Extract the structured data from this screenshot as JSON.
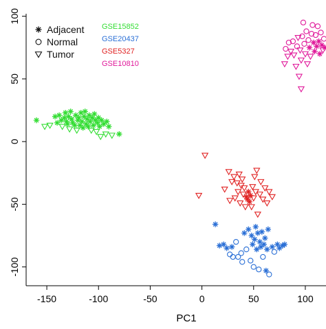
{
  "chart_data": {
    "type": "scatter",
    "title": "",
    "xlabel": "PC1",
    "ylabel": "",
    "xlim": [
      -170,
      120
    ],
    "ylim": [
      -115,
      102
    ],
    "x_ticks": [
      -150,
      -100,
      -50,
      0,
      50,
      100
    ],
    "y_ticks": [
      -100,
      -50,
      0,
      50,
      100
    ],
    "x_tick_labels": [
      "-150",
      "-100",
      "-50",
      "0",
      "50",
      "100"
    ],
    "y_tick_labels": [
      "-100",
      "-50",
      "0",
      "50",
      "100"
    ],
    "grid": false,
    "legend_placement": "top-left",
    "shape_legend": [
      {
        "label": "Adjacent",
        "marker": "asterisk"
      },
      {
        "label": "Normal",
        "marker": "circle"
      },
      {
        "label": "Tumor",
        "marker": "triangle-down"
      }
    ],
    "dataset_legend": [
      {
        "label": "GSE15852",
        "color": "#33dd33"
      },
      {
        "label": "GSE20437",
        "color": "#2a6fd6"
      },
      {
        "label": "GSE5327",
        "color": "#e02222"
      },
      {
        "label": "GSE10810",
        "color": "#e0189a"
      }
    ],
    "series": [
      {
        "name": "GSE15852",
        "color": "#33dd33",
        "points": [
          {
            "x": -160,
            "y": 17,
            "m": "asterisk"
          },
          {
            "x": -152,
            "y": 12,
            "m": "triangle-down"
          },
          {
            "x": -147,
            "y": 13,
            "m": "triangle-down"
          },
          {
            "x": -142,
            "y": 20,
            "m": "asterisk"
          },
          {
            "x": -140,
            "y": 15,
            "m": "asterisk"
          },
          {
            "x": -138,
            "y": 21,
            "m": "asterisk"
          },
          {
            "x": -136,
            "y": 17,
            "m": "asterisk"
          },
          {
            "x": -135,
            "y": 12,
            "m": "triangle-down"
          },
          {
            "x": -133,
            "y": 19,
            "m": "asterisk"
          },
          {
            "x": -132,
            "y": 23,
            "m": "asterisk"
          },
          {
            "x": -131,
            "y": 16,
            "m": "asterisk"
          },
          {
            "x": -130,
            "y": 14,
            "m": "asterisk"
          },
          {
            "x": -129,
            "y": 20,
            "m": "asterisk"
          },
          {
            "x": -128,
            "y": 10,
            "m": "triangle-down"
          },
          {
            "x": -127,
            "y": 24,
            "m": "asterisk"
          },
          {
            "x": -126,
            "y": 18,
            "m": "asterisk"
          },
          {
            "x": -125,
            "y": 15,
            "m": "asterisk"
          },
          {
            "x": -123,
            "y": 13,
            "m": "asterisk"
          },
          {
            "x": -122,
            "y": 21,
            "m": "asterisk"
          },
          {
            "x": -121,
            "y": 9,
            "m": "triangle-down"
          },
          {
            "x": -120,
            "y": 17,
            "m": "asterisk"
          },
          {
            "x": -119,
            "y": 19,
            "m": "asterisk"
          },
          {
            "x": -118,
            "y": 13,
            "m": "asterisk"
          },
          {
            "x": -117,
            "y": 23,
            "m": "asterisk"
          },
          {
            "x": -116,
            "y": 16,
            "m": "asterisk"
          },
          {
            "x": -115,
            "y": 11,
            "m": "asterisk"
          },
          {
            "x": -114,
            "y": 20,
            "m": "asterisk"
          },
          {
            "x": -113,
            "y": 24,
            "m": "asterisk"
          },
          {
            "x": -112,
            "y": 14,
            "m": "asterisk"
          },
          {
            "x": -111,
            "y": 18,
            "m": "asterisk"
          },
          {
            "x": -110,
            "y": 12,
            "m": "asterisk"
          },
          {
            "x": -109,
            "y": 21,
            "m": "asterisk"
          },
          {
            "x": -108,
            "y": 16,
            "m": "asterisk"
          },
          {
            "x": -107,
            "y": 9,
            "m": "triangle-down"
          },
          {
            "x": -106,
            "y": 19,
            "m": "asterisk"
          },
          {
            "x": -105,
            "y": 13,
            "m": "asterisk"
          },
          {
            "x": -104,
            "y": 22,
            "m": "asterisk"
          },
          {
            "x": -103,
            "y": 17,
            "m": "asterisk"
          },
          {
            "x": -102,
            "y": 8,
            "m": "triangle-down"
          },
          {
            "x": -101,
            "y": 15,
            "m": "asterisk"
          },
          {
            "x": -100,
            "y": 19,
            "m": "asterisk"
          },
          {
            "x": -99,
            "y": 12,
            "m": "asterisk"
          },
          {
            "x": -98,
            "y": 4,
            "m": "triangle-down"
          },
          {
            "x": -97,
            "y": 17,
            "m": "asterisk"
          },
          {
            "x": -95,
            "y": 14,
            "m": "asterisk"
          },
          {
            "x": -93,
            "y": 6,
            "m": "triangle-down"
          },
          {
            "x": -92,
            "y": 16,
            "m": "asterisk"
          },
          {
            "x": -90,
            "y": 12,
            "m": "asterisk"
          },
          {
            "x": -87,
            "y": 5,
            "m": "triangle-down"
          },
          {
            "x": -80,
            "y": 6,
            "m": "asterisk"
          }
        ]
      },
      {
        "name": "GSE20437",
        "color": "#2a6fd6",
        "points": [
          {
            "x": 13,
            "y": -66,
            "m": "asterisk"
          },
          {
            "x": 17,
            "y": -83,
            "m": "asterisk"
          },
          {
            "x": 21,
            "y": -82,
            "m": "asterisk"
          },
          {
            "x": 24,
            "y": -85,
            "m": "asterisk"
          },
          {
            "x": 27,
            "y": -90,
            "m": "circle"
          },
          {
            "x": 29,
            "y": -84,
            "m": "asterisk"
          },
          {
            "x": 30,
            "y": -92,
            "m": "circle"
          },
          {
            "x": 33,
            "y": -80,
            "m": "circle"
          },
          {
            "x": 35,
            "y": -92,
            "m": "circle"
          },
          {
            "x": 38,
            "y": -89,
            "m": "circle"
          },
          {
            "x": 39,
            "y": -96,
            "m": "circle"
          },
          {
            "x": 41,
            "y": -73,
            "m": "asterisk"
          },
          {
            "x": 43,
            "y": -86,
            "m": "circle"
          },
          {
            "x": 45,
            "y": -70,
            "m": "asterisk"
          },
          {
            "x": 47,
            "y": -95,
            "m": "circle"
          },
          {
            "x": 48,
            "y": -75,
            "m": "asterisk"
          },
          {
            "x": 49,
            "y": -82,
            "m": "asterisk"
          },
          {
            "x": 50,
            "y": -100,
            "m": "circle"
          },
          {
            "x": 51,
            "y": -78,
            "m": "asterisk"
          },
          {
            "x": 52,
            "y": -68,
            "m": "asterisk"
          },
          {
            "x": 53,
            "y": -86,
            "m": "asterisk"
          },
          {
            "x": 54,
            "y": -73,
            "m": "asterisk"
          },
          {
            "x": 55,
            "y": -102,
            "m": "circle"
          },
          {
            "x": 56,
            "y": -80,
            "m": "asterisk"
          },
          {
            "x": 57,
            "y": -84,
            "m": "asterisk"
          },
          {
            "x": 58,
            "y": -72,
            "m": "asterisk"
          },
          {
            "x": 59,
            "y": -92,
            "m": "circle"
          },
          {
            "x": 60,
            "y": -82,
            "m": "asterisk"
          },
          {
            "x": 61,
            "y": -77,
            "m": "asterisk"
          },
          {
            "x": 62,
            "y": -103,
            "m": "asterisk"
          },
          {
            "x": 63,
            "y": -86,
            "m": "asterisk"
          },
          {
            "x": 64,
            "y": -70,
            "m": "asterisk"
          },
          {
            "x": 65,
            "y": -106,
            "m": "circle"
          },
          {
            "x": 68,
            "y": -84,
            "m": "asterisk"
          },
          {
            "x": 70,
            "y": -88,
            "m": "circle"
          },
          {
            "x": 73,
            "y": -82,
            "m": "asterisk"
          },
          {
            "x": 75,
            "y": -85,
            "m": "asterisk"
          },
          {
            "x": 78,
            "y": -83,
            "m": "asterisk"
          },
          {
            "x": 80,
            "y": -82,
            "m": "asterisk"
          }
        ]
      },
      {
        "name": "GSE5327",
        "color": "#e02222",
        "points": [
          {
            "x": -3,
            "y": -43,
            "m": "triangle-down"
          },
          {
            "x": 3,
            "y": -11,
            "m": "triangle-down"
          },
          {
            "x": 22,
            "y": -38,
            "m": "triangle-down"
          },
          {
            "x": 26,
            "y": -24,
            "m": "triangle-down"
          },
          {
            "x": 27,
            "y": -47,
            "m": "triangle-down"
          },
          {
            "x": 29,
            "y": -32,
            "m": "triangle-down"
          },
          {
            "x": 31,
            "y": -28,
            "m": "triangle-down"
          },
          {
            "x": 32,
            "y": -45,
            "m": "triangle-down"
          },
          {
            "x": 34,
            "y": -33,
            "m": "triangle-down"
          },
          {
            "x": 35,
            "y": -40,
            "m": "triangle-down"
          },
          {
            "x": 36,
            "y": -26,
            "m": "triangle-down"
          },
          {
            "x": 37,
            "y": -49,
            "m": "triangle-down"
          },
          {
            "x": 38,
            "y": -35,
            "m": "triangle-down"
          },
          {
            "x": 39,
            "y": -30,
            "m": "triangle-down"
          },
          {
            "x": 40,
            "y": -42,
            "m": "triangle-down"
          },
          {
            "x": 41,
            "y": -37,
            "m": "triangle-down"
          },
          {
            "x": 42,
            "y": -52,
            "m": "triangle-down"
          },
          {
            "x": 43,
            "y": -44,
            "m": "asterisk"
          },
          {
            "x": 44,
            "y": -46,
            "m": "asterisk"
          },
          {
            "x": 45,
            "y": -40,
            "m": "asterisk"
          },
          {
            "x": 46,
            "y": -48,
            "m": "asterisk"
          },
          {
            "x": 47,
            "y": -43,
            "m": "asterisk"
          },
          {
            "x": 48,
            "y": -52,
            "m": "triangle-down"
          },
          {
            "x": 49,
            "y": -36,
            "m": "triangle-down"
          },
          {
            "x": 50,
            "y": -45,
            "m": "triangle-down"
          },
          {
            "x": 51,
            "y": -28,
            "m": "triangle-down"
          },
          {
            "x": 52,
            "y": -40,
            "m": "triangle-down"
          },
          {
            "x": 53,
            "y": -23,
            "m": "triangle-down"
          },
          {
            "x": 54,
            "y": -58,
            "m": "triangle-down"
          },
          {
            "x": 56,
            "y": -42,
            "m": "triangle-down"
          },
          {
            "x": 57,
            "y": -32,
            "m": "triangle-down"
          },
          {
            "x": 59,
            "y": -46,
            "m": "triangle-down"
          },
          {
            "x": 61,
            "y": -37,
            "m": "triangle-down"
          },
          {
            "x": 63,
            "y": -49,
            "m": "triangle-down"
          },
          {
            "x": 65,
            "y": -40,
            "m": "triangle-down"
          },
          {
            "x": 68,
            "y": -44,
            "m": "triangle-down"
          }
        ]
      },
      {
        "name": "GSE10810",
        "color": "#e0189a",
        "points": [
          {
            "x": 80,
            "y": 62,
            "m": "triangle-down"
          },
          {
            "x": 81,
            "y": 74,
            "m": "circle"
          },
          {
            "x": 83,
            "y": 68,
            "m": "triangle-down"
          },
          {
            "x": 84,
            "y": 79,
            "m": "circle"
          },
          {
            "x": 86,
            "y": 72,
            "m": "triangle-down"
          },
          {
            "x": 88,
            "y": 80,
            "m": "circle"
          },
          {
            "x": 89,
            "y": 69,
            "m": "triangle-down"
          },
          {
            "x": 91,
            "y": 60,
            "m": "triangle-down"
          },
          {
            "x": 92,
            "y": 76,
            "m": "circle"
          },
          {
            "x": 93,
            "y": 83,
            "m": "triangle-down"
          },
          {
            "x": 95,
            "y": 73,
            "m": "triangle-down"
          },
          {
            "x": 96,
            "y": 65,
            "m": "triangle-down"
          },
          {
            "x": 97,
            "y": 84,
            "m": "circle"
          },
          {
            "x": 98,
            "y": 95,
            "m": "circle"
          },
          {
            "x": 99,
            "y": 78,
            "m": "circle"
          },
          {
            "x": 100,
            "y": 70,
            "m": "triangle-down"
          },
          {
            "x": 101,
            "y": 88,
            "m": "circle"
          },
          {
            "x": 102,
            "y": 62,
            "m": "triangle-down"
          },
          {
            "x": 103,
            "y": 81,
            "m": "circle"
          },
          {
            "x": 104,
            "y": 75,
            "m": "asterisk"
          },
          {
            "x": 105,
            "y": 68,
            "m": "triangle-down"
          },
          {
            "x": 106,
            "y": 86,
            "m": "circle"
          },
          {
            "x": 107,
            "y": 93,
            "m": "circle"
          },
          {
            "x": 108,
            "y": 79,
            "m": "asterisk"
          },
          {
            "x": 109,
            "y": 72,
            "m": "asterisk"
          },
          {
            "x": 110,
            "y": 85,
            "m": "circle"
          },
          {
            "x": 111,
            "y": 76,
            "m": "asterisk"
          },
          {
            "x": 112,
            "y": 92,
            "m": "circle"
          },
          {
            "x": 113,
            "y": 80,
            "m": "asterisk"
          },
          {
            "x": 114,
            "y": 70,
            "m": "asterisk"
          },
          {
            "x": 115,
            "y": 87,
            "m": "circle"
          },
          {
            "x": 116,
            "y": 77,
            "m": "asterisk"
          },
          {
            "x": 117,
            "y": 73,
            "m": "triangle-down"
          },
          {
            "x": 118,
            "y": 82,
            "m": "circle"
          },
          {
            "x": 119,
            "y": 75,
            "m": "asterisk"
          },
          {
            "x": 94,
            "y": 52,
            "m": "triangle-down"
          },
          {
            "x": 96,
            "y": 42,
            "m": "triangle-down"
          }
        ]
      }
    ]
  }
}
